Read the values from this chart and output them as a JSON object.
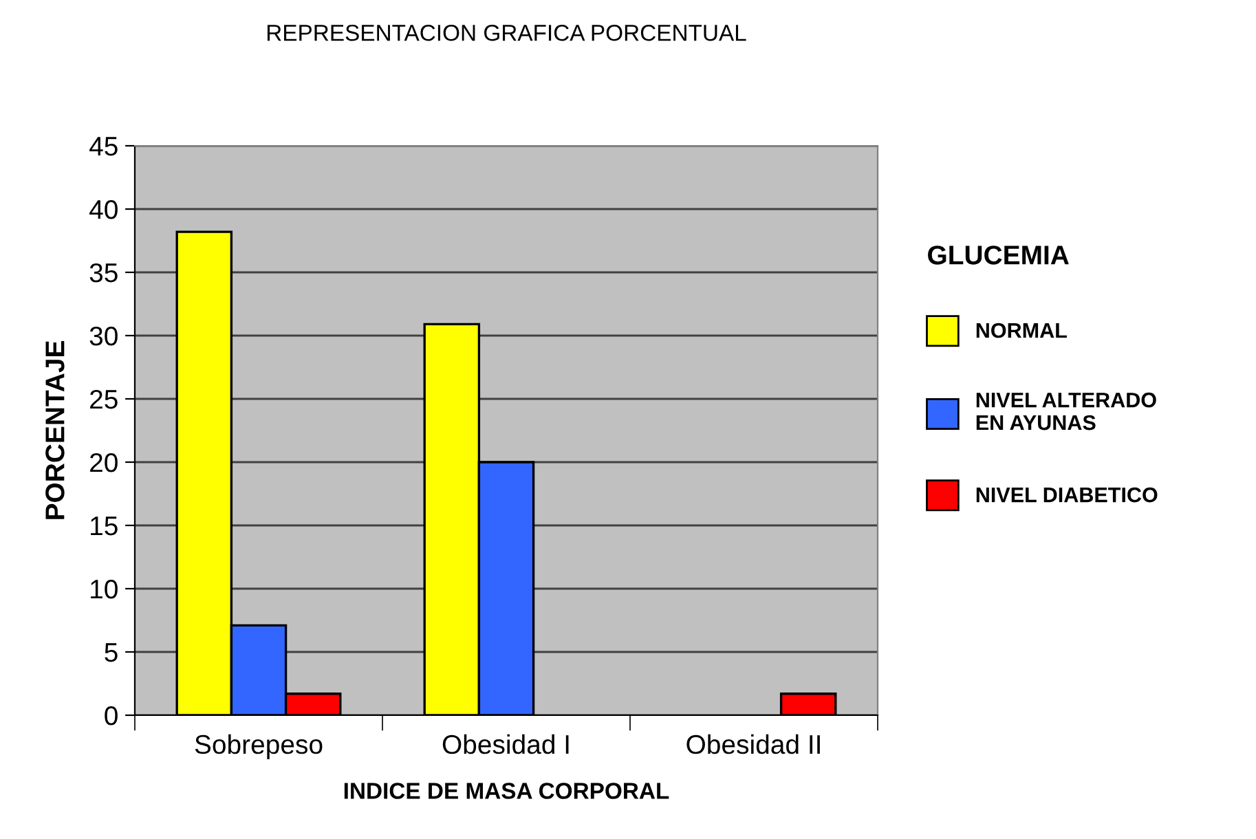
{
  "chart_data": {
    "type": "bar",
    "title": "REPRESENTACION GRAFICA PORCENTUAL",
    "xlabel": "INDICE DE MASA CORPORAL",
    "ylabel": "PORCENTAJE",
    "legend_title": "GLUCEMIA",
    "categories": [
      "Sobrepeso",
      "Obesidad I",
      "Obesidad II"
    ],
    "series": [
      {
        "name": "NORMAL",
        "color": "#ffff00",
        "values": [
          38.2,
          30.9,
          null
        ]
      },
      {
        "name": "NIVEL ALTERADO\nEN AYUNAS",
        "color": "#3366ff",
        "values": [
          7.1,
          20.0,
          null
        ]
      },
      {
        "name": "NIVEL DIABETICO",
        "color": "#ff0000",
        "values": [
          1.7,
          null,
          1.7
        ]
      }
    ],
    "ylim": [
      0,
      45
    ],
    "yticks": [
      0,
      5,
      10,
      15,
      20,
      25,
      30,
      35,
      40,
      45
    ],
    "grid": "y",
    "legend": "right"
  }
}
